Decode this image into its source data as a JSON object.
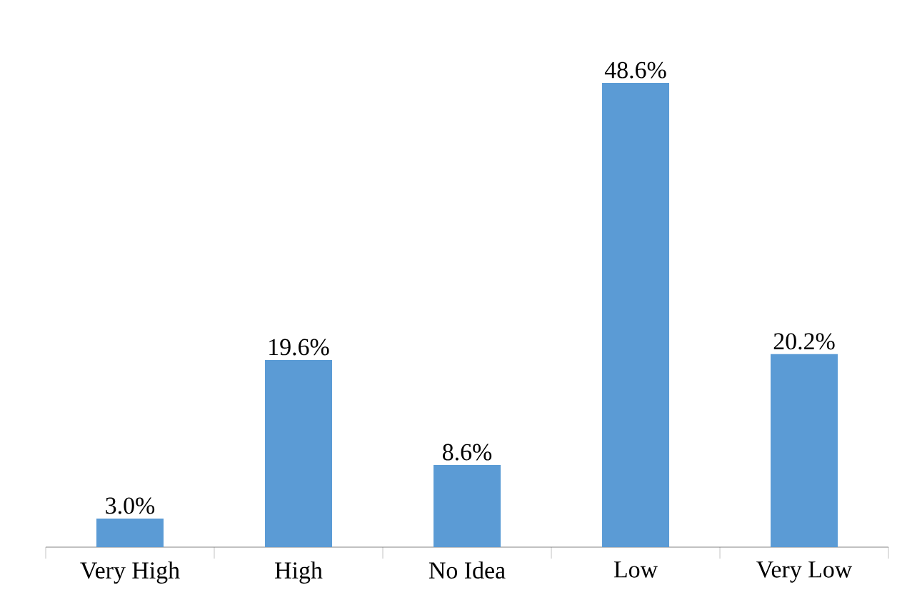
{
  "chart_data": {
    "type": "bar",
    "categories": [
      "Very High",
      "High",
      "No Idea",
      "Low",
      "Very Low"
    ],
    "values": [
      3.0,
      19.6,
      8.6,
      48.6,
      20.2
    ],
    "value_labels": [
      "3.0%",
      "19.6%",
      "8.6%",
      "48.6%",
      "20.2%"
    ],
    "color": "#5b9bd5"
  }
}
